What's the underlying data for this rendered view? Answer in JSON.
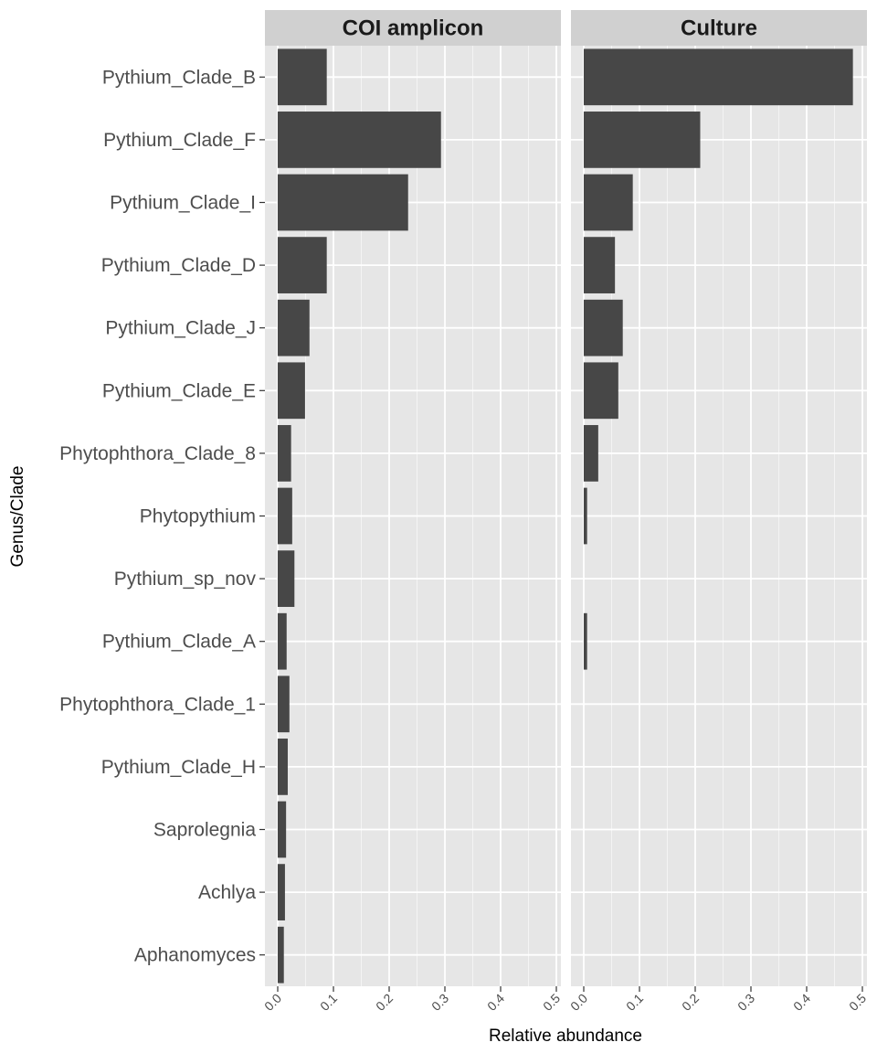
{
  "chart_data": {
    "type": "bar",
    "orientation": "horizontal",
    "xlabel": "Relative abundance",
    "ylabel": "Genus/Clade",
    "xlim": [
      0,
      0.5
    ],
    "x_ticks": [
      "0.0",
      "0.1",
      "0.2",
      "0.3",
      "0.4",
      "0.5"
    ],
    "grid": true,
    "categories": [
      "Pythium_Clade_B",
      "Pythium_Clade_F",
      "Pythium_Clade_I",
      "Pythium_Clade_D",
      "Pythium_Clade_J",
      "Pythium_Clade_E",
      "Phytophthora_Clade_8",
      "Phytopythium",
      "Pythium_sp_nov",
      "Pythium_Clade_A",
      "Phytophthora_Clade_1",
      "Pythium_Clade_H",
      "Saprolegnia",
      "Achlya",
      "Aphanomyces"
    ],
    "facets": [
      {
        "name": "COI amplicon",
        "values": [
          0.088,
          0.293,
          0.234,
          0.088,
          0.057,
          0.049,
          0.024,
          0.026,
          0.03,
          0.016,
          0.021,
          0.018,
          0.015,
          0.013,
          0.011
        ]
      },
      {
        "name": "Culture",
        "values": [
          0.483,
          0.209,
          0.088,
          0.056,
          0.07,
          0.062,
          0.026,
          0.006,
          0,
          0.006,
          0,
          0,
          0,
          0,
          0
        ]
      }
    ],
    "colors": {
      "bar": "#474747",
      "panel": "#e6e6e6",
      "strip": "#d0d0d0",
      "grid": "#ffffff"
    }
  }
}
